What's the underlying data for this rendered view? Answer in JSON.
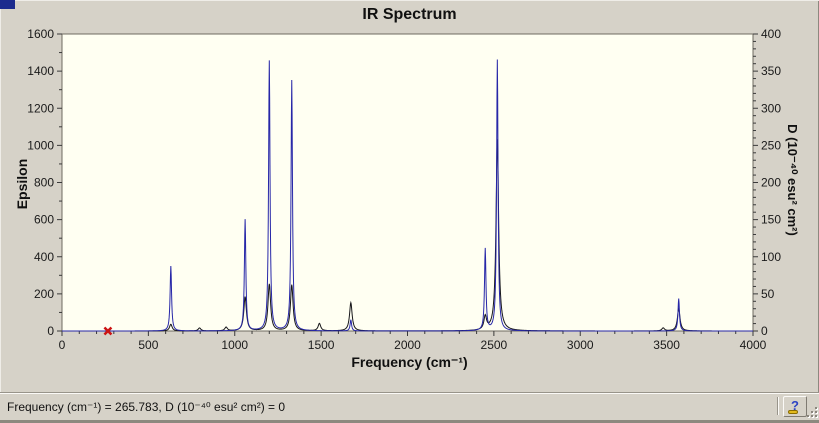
{
  "window": {
    "bg": "#d6d2c8",
    "titlebar_fragment_color": "#1c2b8e"
  },
  "chart_data": {
    "type": "line",
    "title": "IR Spectrum",
    "xlabel": "Frequency (cm⁻¹)",
    "ylabel_left": "Epsilon",
    "ylabel_right": "D (10⁻⁴⁰ esu² cm²)",
    "xlim": [
      0,
      4000
    ],
    "ylim_left": [
      0,
      1600
    ],
    "ylim_right": [
      0,
      400
    ],
    "x_major_step": 500,
    "x_minor_step": 100,
    "y_left_major_step": 200,
    "y_left_minor_step": 100,
    "y_right_major_step": 50,
    "y_right_minor_step": 10,
    "grid": false,
    "legend": false,
    "colors": {
      "plot_bg": "#fffff2",
      "frame": "#6f6b61",
      "tick": "#3a3a3a",
      "marker": "#cc1414"
    },
    "series": [
      {
        "name": "D",
        "axis": "right",
        "color": "#16161a",
        "halfwidth": 9,
        "peaks": [
          [
            630,
            9
          ],
          [
            796,
            4
          ],
          [
            950,
            5
          ],
          [
            1060,
            46
          ],
          [
            1200,
            63
          ],
          [
            1330,
            62
          ],
          [
            1490,
            10
          ],
          [
            1672,
            38
          ],
          [
            2450,
            18
          ],
          [
            2520,
            258
          ],
          [
            3480,
            4
          ],
          [
            3570,
            30
          ]
        ]
      },
      {
        "name": "Epsilon",
        "axis": "left",
        "color": "#2727a8",
        "halfwidth": 5,
        "peaks": [
          [
            630,
            350
          ],
          [
            1060,
            600
          ],
          [
            1200,
            1455
          ],
          [
            1330,
            1350
          ],
          [
            1672,
            60
          ],
          [
            2450,
            440
          ],
          [
            2520,
            1460
          ],
          [
            3570,
            175
          ]
        ]
      }
    ],
    "marker": {
      "x": 265.783,
      "y": 0
    }
  },
  "status_bar": {
    "text": "Frequency (cm⁻¹) = 265.783, D (10⁻⁴⁰ esu² cm²) = 0"
  },
  "help": {
    "label": "?"
  }
}
